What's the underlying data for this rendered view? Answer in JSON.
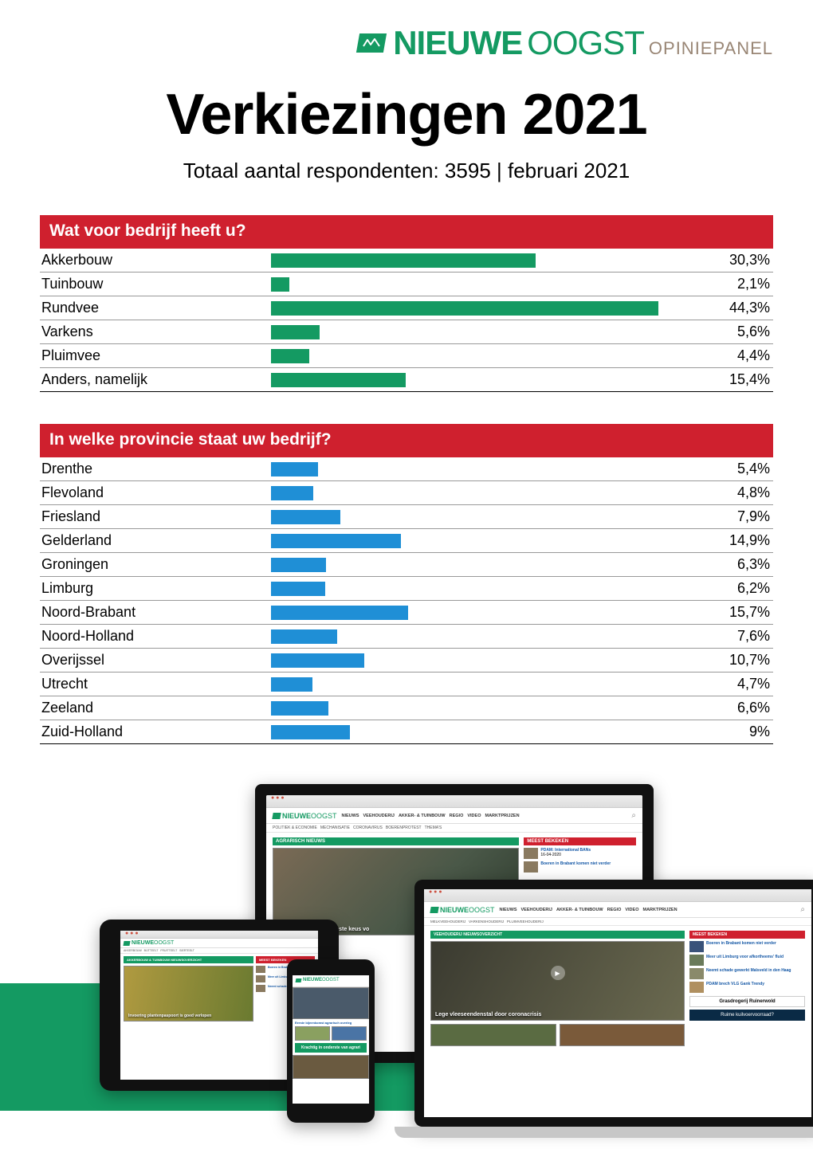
{
  "brand": {
    "nieuwe": "NIEUWE",
    "oogst": "OOGST",
    "panel": "OPINIEPANEL",
    "green": "#149a62",
    "tan": "#998675"
  },
  "title": "Verkiezingen 2021",
  "subtitle": "Totaal aantal respondenten: 3595 | februari 2021",
  "colors": {
    "header_bg": "#cf202e",
    "header_text": "#ffffff",
    "row_border": "#999999",
    "bar_q1": "#149a62",
    "bar_q2": "#1f8fd6",
    "bar_max_percent": 50
  },
  "q1": {
    "title": "Wat voor bedrijf heeft u?",
    "rows": [
      {
        "label": "Akkerbouw",
        "value": 30.3,
        "pct": "30,3%"
      },
      {
        "label": "Tuinbouw",
        "value": 2.1,
        "pct": "2,1%"
      },
      {
        "label": "Rundvee",
        "value": 44.3,
        "pct": "44,3%"
      },
      {
        "label": "Varkens",
        "value": 5.6,
        "pct": "5,6%"
      },
      {
        "label": "Pluimvee",
        "value": 4.4,
        "pct": "4,4%"
      },
      {
        "label": "Anders, namelijk",
        "value": 15.4,
        "pct": "15,4%"
      }
    ]
  },
  "q2": {
    "title": "In welke provincie staat uw bedrijf?",
    "rows": [
      {
        "label": "Drenthe",
        "value": 5.4,
        "pct": "5,4%"
      },
      {
        "label": "Flevoland",
        "value": 4.8,
        "pct": "4,8%"
      },
      {
        "label": "Friesland",
        "value": 7.9,
        "pct": "7,9%"
      },
      {
        "label": "Gelderland",
        "value": 14.9,
        "pct": "14,9%"
      },
      {
        "label": "Groningen",
        "value": 6.3,
        "pct": "6,3%"
      },
      {
        "label": "Limburg",
        "value": 6.2,
        "pct": "6,2%"
      },
      {
        "label": "Noord-Brabant",
        "value": 15.7,
        "pct": "15,7%"
      },
      {
        "label": "Noord-Holland",
        "value": 7.6,
        "pct": "7,6%"
      },
      {
        "label": "Overijssel",
        "value": 10.7,
        "pct": "10,7%"
      },
      {
        "label": "Utrecht",
        "value": 4.7,
        "pct": "4,7%"
      },
      {
        "label": "Zeeland",
        "value": 6.6,
        "pct": "6,6%"
      },
      {
        "label": "Zuid-Holland",
        "value": 9.0,
        "pct": "9%"
      }
    ]
  },
  "site_nav": [
    "NIEUWS",
    "VEEHOUDERIJ",
    "AKKER- & TUINBOUW",
    "REGIO",
    "VIDEO",
    "MARKTPRIJZEN"
  ],
  "site_subnav": [
    "POLITIEK & ECONOMIE",
    "MECHANISATIE",
    "CORONAVIRUS",
    "BOERENPROTEST",
    "THEMA'S"
  ],
  "site_side_head": "MEEST BEKEKEN",
  "site_agr_head": "AGRARISCH NIEUWS",
  "headline_bits": {
    "mestpan": "r Janssen: 'Mestpan beste keus vo",
    "lege": "Lege vleeseendenstal door coronacrisis",
    "pdam": "PDAM: International BANs",
    "ruime": "Ruime kuilvoervoorraad?",
    "krachtig": "Krachtig in onderste van agrari",
    "grasdrogerij": "Grasdrogerij Ruinerwold"
  }
}
